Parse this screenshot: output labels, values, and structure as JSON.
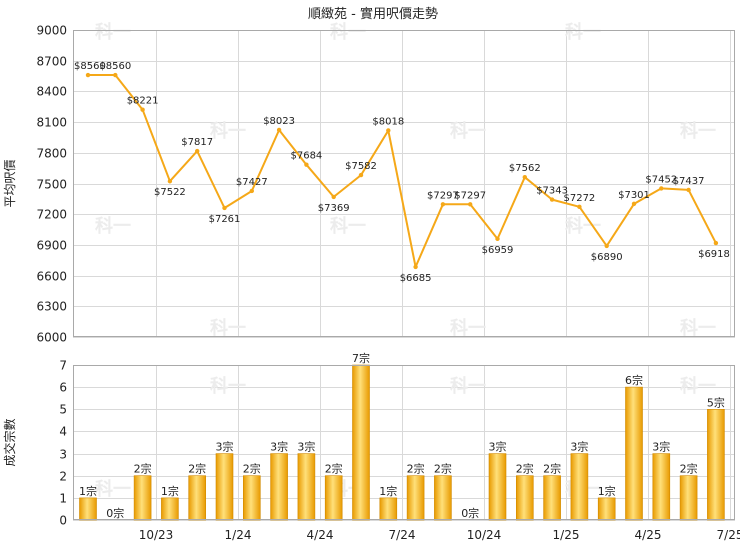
{
  "chart_data": [
    {
      "type": "line",
      "title": "順緻苑 - 實用呎價走勢",
      "ylabel": "平均呎價",
      "ylim": [
        6000,
        9000
      ],
      "yticks": [
        6000,
        6300,
        6600,
        6900,
        7200,
        7500,
        7800,
        8100,
        8400,
        8700,
        9000
      ],
      "x_ticks": [
        "10/23",
        "1/24",
        "4/24",
        "7/24",
        "10/24",
        "1/25",
        "4/25",
        "7/25"
      ],
      "x_tick_index": [
        2,
        5,
        8,
        11,
        14,
        17,
        20,
        23
      ],
      "color": "#f5a818",
      "values": [
        8560,
        8560,
        8221,
        7522,
        7817,
        7261,
        7427,
        8023,
        7684,
        7369,
        7582,
        8018,
        6685,
        7297,
        7297,
        6959,
        7562,
        7343,
        7272,
        6890,
        7301,
        7452,
        7437,
        6918
      ],
      "labels": [
        "$8560",
        "$8560",
        "$8221",
        "$7522",
        "$7817",
        "$7261",
        "$7427",
        "$8023",
        "$7684",
        "$7369",
        "$7582",
        "$8018",
        "$6685",
        "$7297",
        "$7297",
        "$6959",
        "$7562",
        "$7343",
        "$7272",
        "$6890",
        "$7301",
        "$7452",
        "$7437",
        "$6918"
      ]
    },
    {
      "type": "bar",
      "ylabel": "成交宗數",
      "ylim": [
        0,
        7
      ],
      "yticks": [
        0,
        1,
        2,
        3,
        4,
        5,
        6,
        7
      ],
      "x_ticks": [
        "10/23",
        "1/24",
        "4/24",
        "7/24",
        "10/24",
        "1/25",
        "4/25",
        "7/25"
      ],
      "x_tick_index": [
        2,
        5,
        8,
        11,
        14,
        17,
        20,
        23
      ],
      "color": "#f2a80f",
      "values": [
        1,
        0,
        2,
        1,
        2,
        3,
        2,
        3,
        3,
        2,
        7,
        1,
        2,
        2,
        0,
        3,
        2,
        2,
        3,
        1,
        6,
        3,
        2,
        5
      ],
      "labels": [
        "1宗",
        "0宗",
        "2宗",
        "1宗",
        "2宗",
        "3宗",
        "2宗",
        "3宗",
        "3宗",
        "2宗",
        "7宗",
        "1宗",
        "2宗",
        "2宗",
        "0宗",
        "3宗",
        "2宗",
        "2宗",
        "3宗",
        "1宗",
        "6宗",
        "3宗",
        "2宗",
        "5宗"
      ]
    }
  ],
  "watermark": "科一"
}
